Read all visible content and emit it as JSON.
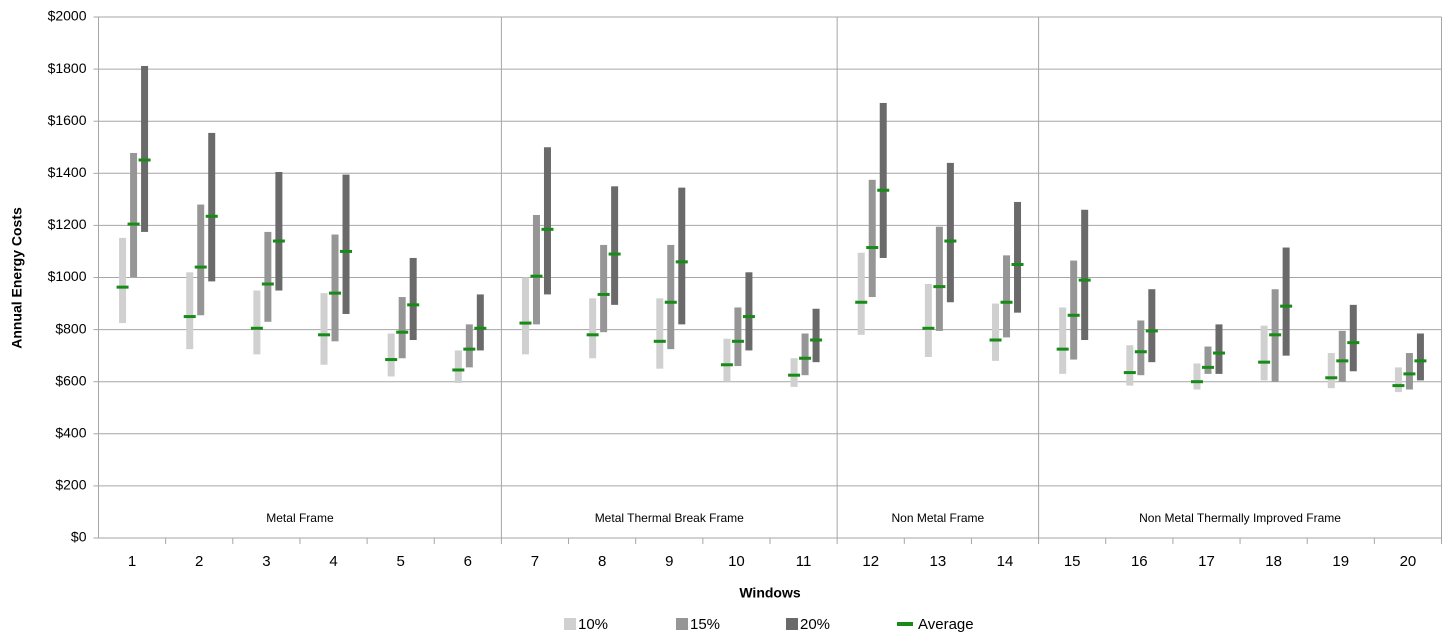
{
  "chart_data": {
    "type": "range_bar",
    "y_label": "Annual Energy Costs",
    "x_label": "Windows",
    "categories": [
      "1",
      "2",
      "3",
      "4",
      "5",
      "6",
      "7",
      "8",
      "9",
      "10",
      "11",
      "12",
      "13",
      "14",
      "15",
      "16",
      "17",
      "18",
      "19",
      "20"
    ],
    "groups": [
      {
        "name": "Metal Frame",
        "count": 6
      },
      {
        "name": "Metal Thermal Break Frame",
        "count": 5
      },
      {
        "name": "Non Metal Frame",
        "count": 3
      },
      {
        "name": "Non Metal Thermally Improved Frame",
        "count": 6
      }
    ],
    "series": [
      {
        "name": "10%",
        "color": "#d0d0d0",
        "low": [
          825,
          725,
          705,
          665,
          620,
          595,
          705,
          690,
          650,
          600,
          580,
          780,
          695,
          680,
          630,
          585,
          570,
          605,
          575,
          560
        ],
        "high": [
          1152,
          1020,
          950,
          940,
          785,
          720,
          1000,
          920,
          920,
          765,
          690,
          1095,
          975,
          900,
          885,
          740,
          670,
          815,
          710,
          655
        ],
        "avg": [
          963,
          850,
          805,
          780,
          685,
          645,
          825,
          780,
          755,
          665,
          625,
          905,
          805,
          760,
          725,
          635,
          600,
          675,
          615,
          585
        ]
      },
      {
        "name": "15%",
        "color": "#969696",
        "low": [
          1002,
          855,
          830,
          755,
          690,
          655,
          820,
          790,
          725,
          660,
          625,
          925,
          795,
          770,
          685,
          625,
          630,
          600,
          600,
          570
        ],
        "high": [
          1478,
          1280,
          1175,
          1165,
          925,
          820,
          1240,
          1125,
          1125,
          885,
          785,
          1375,
          1195,
          1085,
          1065,
          835,
          735,
          955,
          795,
          710
        ],
        "avg": [
          1205,
          1040,
          975,
          940,
          790,
          725,
          1005,
          935,
          905,
          755,
          690,
          1115,
          965,
          905,
          855,
          715,
          655,
          780,
          680,
          630
        ]
      },
      {
        "name": "20%",
        "color": "#6a6a6a",
        "low": [
          1175,
          985,
          950,
          860,
          760,
          720,
          935,
          895,
          820,
          720,
          675,
          1075,
          905,
          865,
          760,
          675,
          630,
          700,
          640,
          605
        ],
        "high": [
          1812,
          1555,
          1405,
          1395,
          1075,
          935,
          1500,
          1350,
          1345,
          1020,
          880,
          1670,
          1440,
          1290,
          1260,
          955,
          820,
          1115,
          895,
          785
        ],
        "avg": [
          1451,
          1235,
          1140,
          1100,
          895,
          805,
          1185,
          1090,
          1060,
          850,
          760,
          1335,
          1140,
          1050,
          990,
          795,
          710,
          890,
          750,
          680
        ]
      }
    ],
    "average": {
      "name": "Average",
      "color": "#178a17"
    },
    "ylim": [
      0,
      2000
    ],
    "yticks": [
      {
        "value": 0,
        "label": "$0"
      },
      {
        "value": 200,
        "label": "$200"
      },
      {
        "value": 400,
        "label": "$400"
      },
      {
        "value": 600,
        "label": "$600"
      },
      {
        "value": 800,
        "label": "$800"
      },
      {
        "value": 1000,
        "label": "$1000"
      },
      {
        "value": 1200,
        "label": "$1200"
      },
      {
        "value": 1400,
        "label": "$1400"
      },
      {
        "value": 1600,
        "label": "$1600"
      },
      {
        "value": 1800,
        "label": "$1800"
      },
      {
        "value": 2000,
        "label": "$2000"
      }
    ],
    "grid": true
  }
}
